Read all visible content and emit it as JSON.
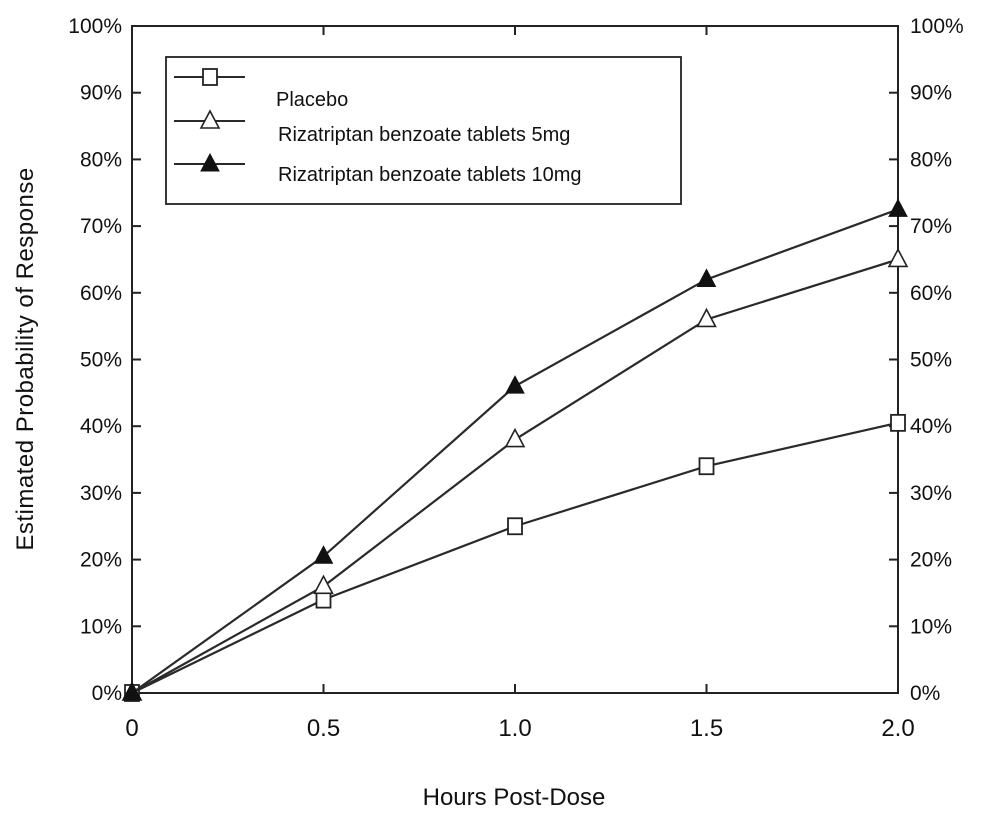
{
  "chart_data": {
    "type": "line",
    "title": "",
    "xlabel": "Hours Post-Dose",
    "ylabel": "Estimated Probability of Response",
    "xlim": [
      0,
      2.0
    ],
    "ylim": [
      0,
      100
    ],
    "x_ticks": [
      "0",
      "0.5",
      "1.0",
      "1.5",
      "2.0"
    ],
    "x_tick_values": [
      0,
      0.5,
      1.0,
      1.5,
      2.0
    ],
    "y_ticks": [
      "0%",
      "10%",
      "20%",
      "30%",
      "40%",
      "50%",
      "60%",
      "70%",
      "80%",
      "90%",
      "100%"
    ],
    "y_tick_values": [
      0,
      10,
      20,
      30,
      40,
      50,
      60,
      70,
      80,
      90,
      100
    ],
    "right_axis_ticks": true,
    "grid": false,
    "legend_position": "top-left",
    "x": [
      0,
      0.5,
      1.0,
      1.5,
      2.0
    ],
    "series": [
      {
        "name": "Placebo",
        "marker": "open-square",
        "values": [
          0,
          14,
          25,
          34,
          40.5
        ]
      },
      {
        "name": "Rizatriptan benzoate tablets 5mg",
        "marker": "open-triangle",
        "values": [
          0,
          16,
          38,
          56,
          65
        ]
      },
      {
        "name": "Rizatriptan benzoate tablets 10mg",
        "marker": "filled-triangle",
        "values": [
          0,
          20.5,
          46,
          62,
          72.5
        ]
      }
    ],
    "colors": {
      "line": "#2a2a2a",
      "marker_fill_filled": "#111111",
      "marker_fill_open": "#ffffff"
    }
  }
}
